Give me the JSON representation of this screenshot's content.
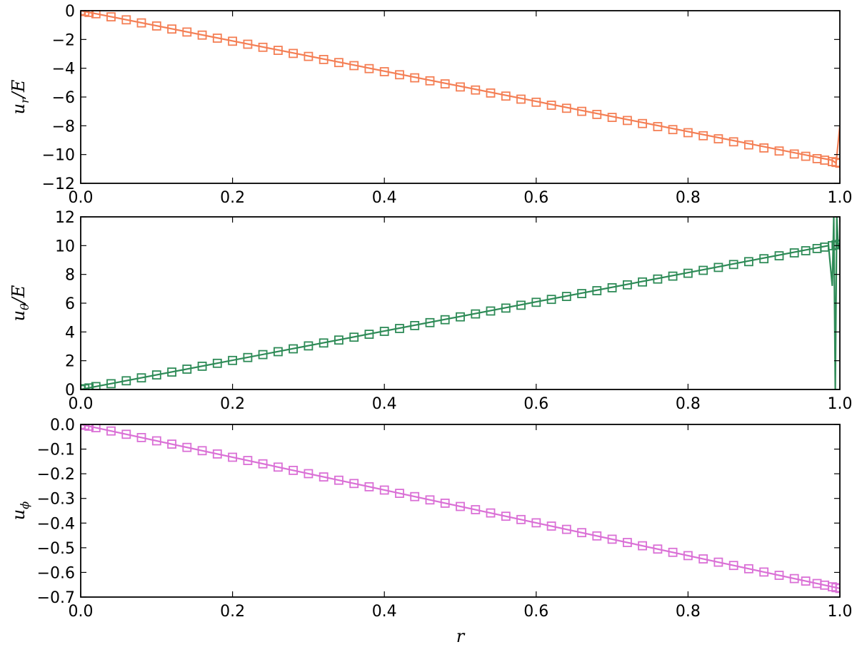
{
  "chart_data": [
    {
      "type": "line",
      "ylabel_main": "u",
      "ylabel_sub": "r",
      "ylabel_tail": "/E",
      "ylim": [
        -12,
        0
      ],
      "yticks": [
        0,
        -2,
        -4,
        -6,
        -8,
        -10,
        -12
      ],
      "ytick_labels": [
        "0",
        "−2",
        "−4",
        "−6",
        "−8",
        "−10",
        "−12"
      ],
      "xlim": [
        0.0,
        1.0
      ],
      "xticks": [
        0.0,
        0.2,
        0.4,
        0.6,
        0.8,
        1.0
      ],
      "xtick_labels": [
        "0.0",
        "0.2",
        "0.4",
        "0.6",
        "0.8",
        "1.0"
      ],
      "color": "#f47f55",
      "series": [
        {
          "style": "line",
          "x": [
            0.0,
            0.99,
            0.995,
            1.0
          ],
          "y": [
            0.0,
            -10.4,
            -10.6,
            -8.0
          ]
        },
        {
          "style": "markers",
          "x": [
            0.0,
            0.0055,
            0.011,
            0.02,
            0.04,
            0.06,
            0.08,
            0.1,
            0.12,
            0.14,
            0.16,
            0.18,
            0.2,
            0.22,
            0.24,
            0.26,
            0.28,
            0.3,
            0.32,
            0.34,
            0.36,
            0.38,
            0.4,
            0.42,
            0.44,
            0.46,
            0.48,
            0.5,
            0.52,
            0.54,
            0.56,
            0.58,
            0.6,
            0.62,
            0.64,
            0.66,
            0.68,
            0.7,
            0.72,
            0.74,
            0.76,
            0.78,
            0.8,
            0.82,
            0.84,
            0.86,
            0.88,
            0.9,
            0.92,
            0.94,
            0.955,
            0.97,
            0.98,
            0.99,
            0.995,
            1.0
          ],
          "slope": -10.6
        }
      ]
    },
    {
      "type": "line",
      "ylabel_main": "u",
      "ylabel_sub": "θ",
      "ylabel_tail": "/E",
      "ylim": [
        0,
        12
      ],
      "yticks": [
        0,
        2,
        4,
        6,
        8,
        10,
        12
      ],
      "ytick_labels": [
        "0",
        "2",
        "4",
        "6",
        "8",
        "10",
        "12"
      ],
      "xlim": [
        0.0,
        1.0
      ],
      "xticks": [
        0.0,
        0.2,
        0.4,
        0.6,
        0.8,
        1.0
      ],
      "xtick_labels": [
        "0.0",
        "0.2",
        "0.4",
        "0.6",
        "0.8",
        "1.0"
      ],
      "color": "#2e8b57",
      "series": [
        {
          "style": "line",
          "x": [
            0.0,
            0.985,
            0.99,
            0.992,
            0.994,
            0.996,
            0.998,
            1.0
          ],
          "y": [
            0.0,
            10.0,
            7.2,
            12.0,
            0.0,
            12.0,
            9.8,
            10.2
          ]
        },
        {
          "style": "markers",
          "x": [
            0.0,
            0.0055,
            0.011,
            0.02,
            0.04,
            0.06,
            0.08,
            0.1,
            0.12,
            0.14,
            0.16,
            0.18,
            0.2,
            0.22,
            0.24,
            0.26,
            0.28,
            0.3,
            0.32,
            0.34,
            0.36,
            0.38,
            0.4,
            0.42,
            0.44,
            0.46,
            0.48,
            0.5,
            0.52,
            0.54,
            0.56,
            0.58,
            0.6,
            0.62,
            0.64,
            0.66,
            0.68,
            0.7,
            0.72,
            0.74,
            0.76,
            0.78,
            0.8,
            0.82,
            0.84,
            0.86,
            0.88,
            0.9,
            0.92,
            0.94,
            0.955,
            0.97,
            0.98,
            0.99,
            0.995,
            1.0
          ],
          "slope": 10.1
        }
      ]
    },
    {
      "type": "line",
      "ylabel_main": "u",
      "ylabel_sub": "ϕ",
      "ylabel_tail": "",
      "ylim": [
        -0.7,
        0.0
      ],
      "yticks": [
        0.0,
        -0.1,
        -0.2,
        -0.3,
        -0.4,
        -0.5,
        -0.6,
        -0.7
      ],
      "ytick_labels": [
        "0.0",
        "−0.1",
        "−0.2",
        "−0.3",
        "−0.4",
        "−0.5",
        "−0.6",
        "−0.7"
      ],
      "xlim": [
        0.0,
        1.0
      ],
      "xticks": [
        0.0,
        0.2,
        0.4,
        0.6,
        0.8,
        1.0
      ],
      "xtick_labels": [
        "0.0",
        "0.2",
        "0.4",
        "0.6",
        "0.8",
        "1.0"
      ],
      "xlabel": "r",
      "color": "#da70d6",
      "series": [
        {
          "style": "line",
          "x": [
            0.0,
            1.0
          ],
          "y": [
            0.0,
            -0.665
          ]
        },
        {
          "style": "markers",
          "x": [
            0.0,
            0.0055,
            0.011,
            0.02,
            0.04,
            0.06,
            0.08,
            0.1,
            0.12,
            0.14,
            0.16,
            0.18,
            0.2,
            0.22,
            0.24,
            0.26,
            0.28,
            0.3,
            0.32,
            0.34,
            0.36,
            0.38,
            0.4,
            0.42,
            0.44,
            0.46,
            0.48,
            0.5,
            0.52,
            0.54,
            0.56,
            0.58,
            0.6,
            0.62,
            0.64,
            0.66,
            0.68,
            0.7,
            0.72,
            0.74,
            0.76,
            0.78,
            0.8,
            0.82,
            0.84,
            0.86,
            0.88,
            0.9,
            0.92,
            0.94,
            0.955,
            0.97,
            0.98,
            0.99,
            0.995,
            1.0
          ],
          "slope": -0.665
        }
      ]
    }
  ]
}
